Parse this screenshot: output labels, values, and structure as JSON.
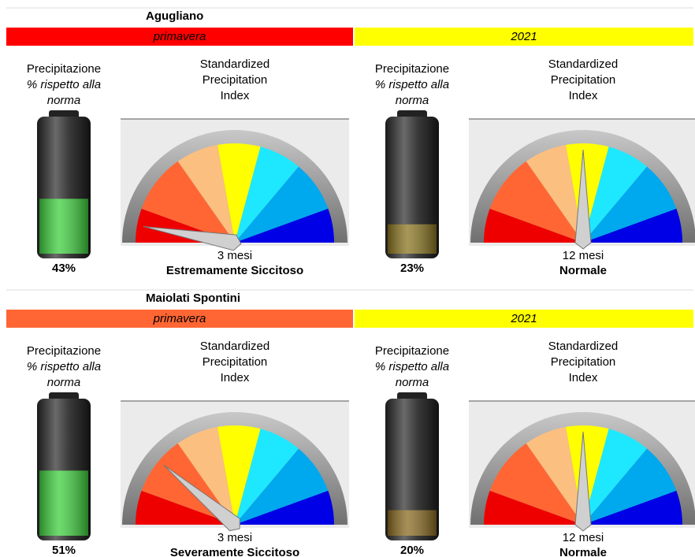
{
  "sections": [
    {
      "title": "Agugliano",
      "season": {
        "label": "primavera",
        "color": "#ff0000"
      },
      "year": {
        "label": "2021",
        "color": "#ffff00"
      },
      "panels": [
        {
          "precip_lines": [
            "Precipitazione",
            "% rispetto alla",
            "norma"
          ],
          "percent": {
            "value": 43,
            "label": "43%"
          },
          "fill_color": "#3ecf3e",
          "percent_color": "#666666",
          "gauge_title": [
            "Standardized",
            "Precipitation",
            "Index"
          ],
          "period": "3 mesi",
          "status": "Estremamente Siccitoso",
          "status_color": "#cc0000"
        },
        {
          "precip_lines": [
            "Precipitazione",
            "% rispetto alla",
            "norma"
          ],
          "percent": {
            "value": 23,
            "label": "23%"
          },
          "fill_color": "#8a7420",
          "percent_color": "#666666",
          "gauge_title": [
            "Standardized",
            "Precipitation",
            "Index"
          ],
          "period": "12 mesi",
          "status": "Normale",
          "status_color": "#777777"
        }
      ]
    },
    {
      "title": "Maiolati Spontini",
      "season": {
        "label": "primavera",
        "color": "#ff6633"
      },
      "year": {
        "label": "2021",
        "color": "#ffff00"
      },
      "panels": [
        {
          "precip_lines": [
            "Precipitazione",
            "% rispetto alla",
            "norma"
          ],
          "percent": {
            "value": 51,
            "label": "51%"
          },
          "fill_color": "#3ecf3e",
          "percent_color": "#2aa0d8",
          "gauge_title": [
            "Standardized",
            "Precipitation",
            "Index"
          ],
          "period": "3 mesi",
          "status": "Severamente Siccitoso",
          "status_color": "#e0602a"
        },
        {
          "precip_lines": [
            "Precipitazione",
            "% rispetto alla",
            "norma"
          ],
          "percent": {
            "value": 20,
            "label": "20%"
          },
          "fill_color": "#8a6a20",
          "percent_color": "#666666",
          "gauge_title": [
            "Standardized",
            "Precipitation",
            "Index"
          ],
          "period": "12 mesi",
          "status": "Normale",
          "status_color": "#777777"
        }
      ]
    }
  ]
}
